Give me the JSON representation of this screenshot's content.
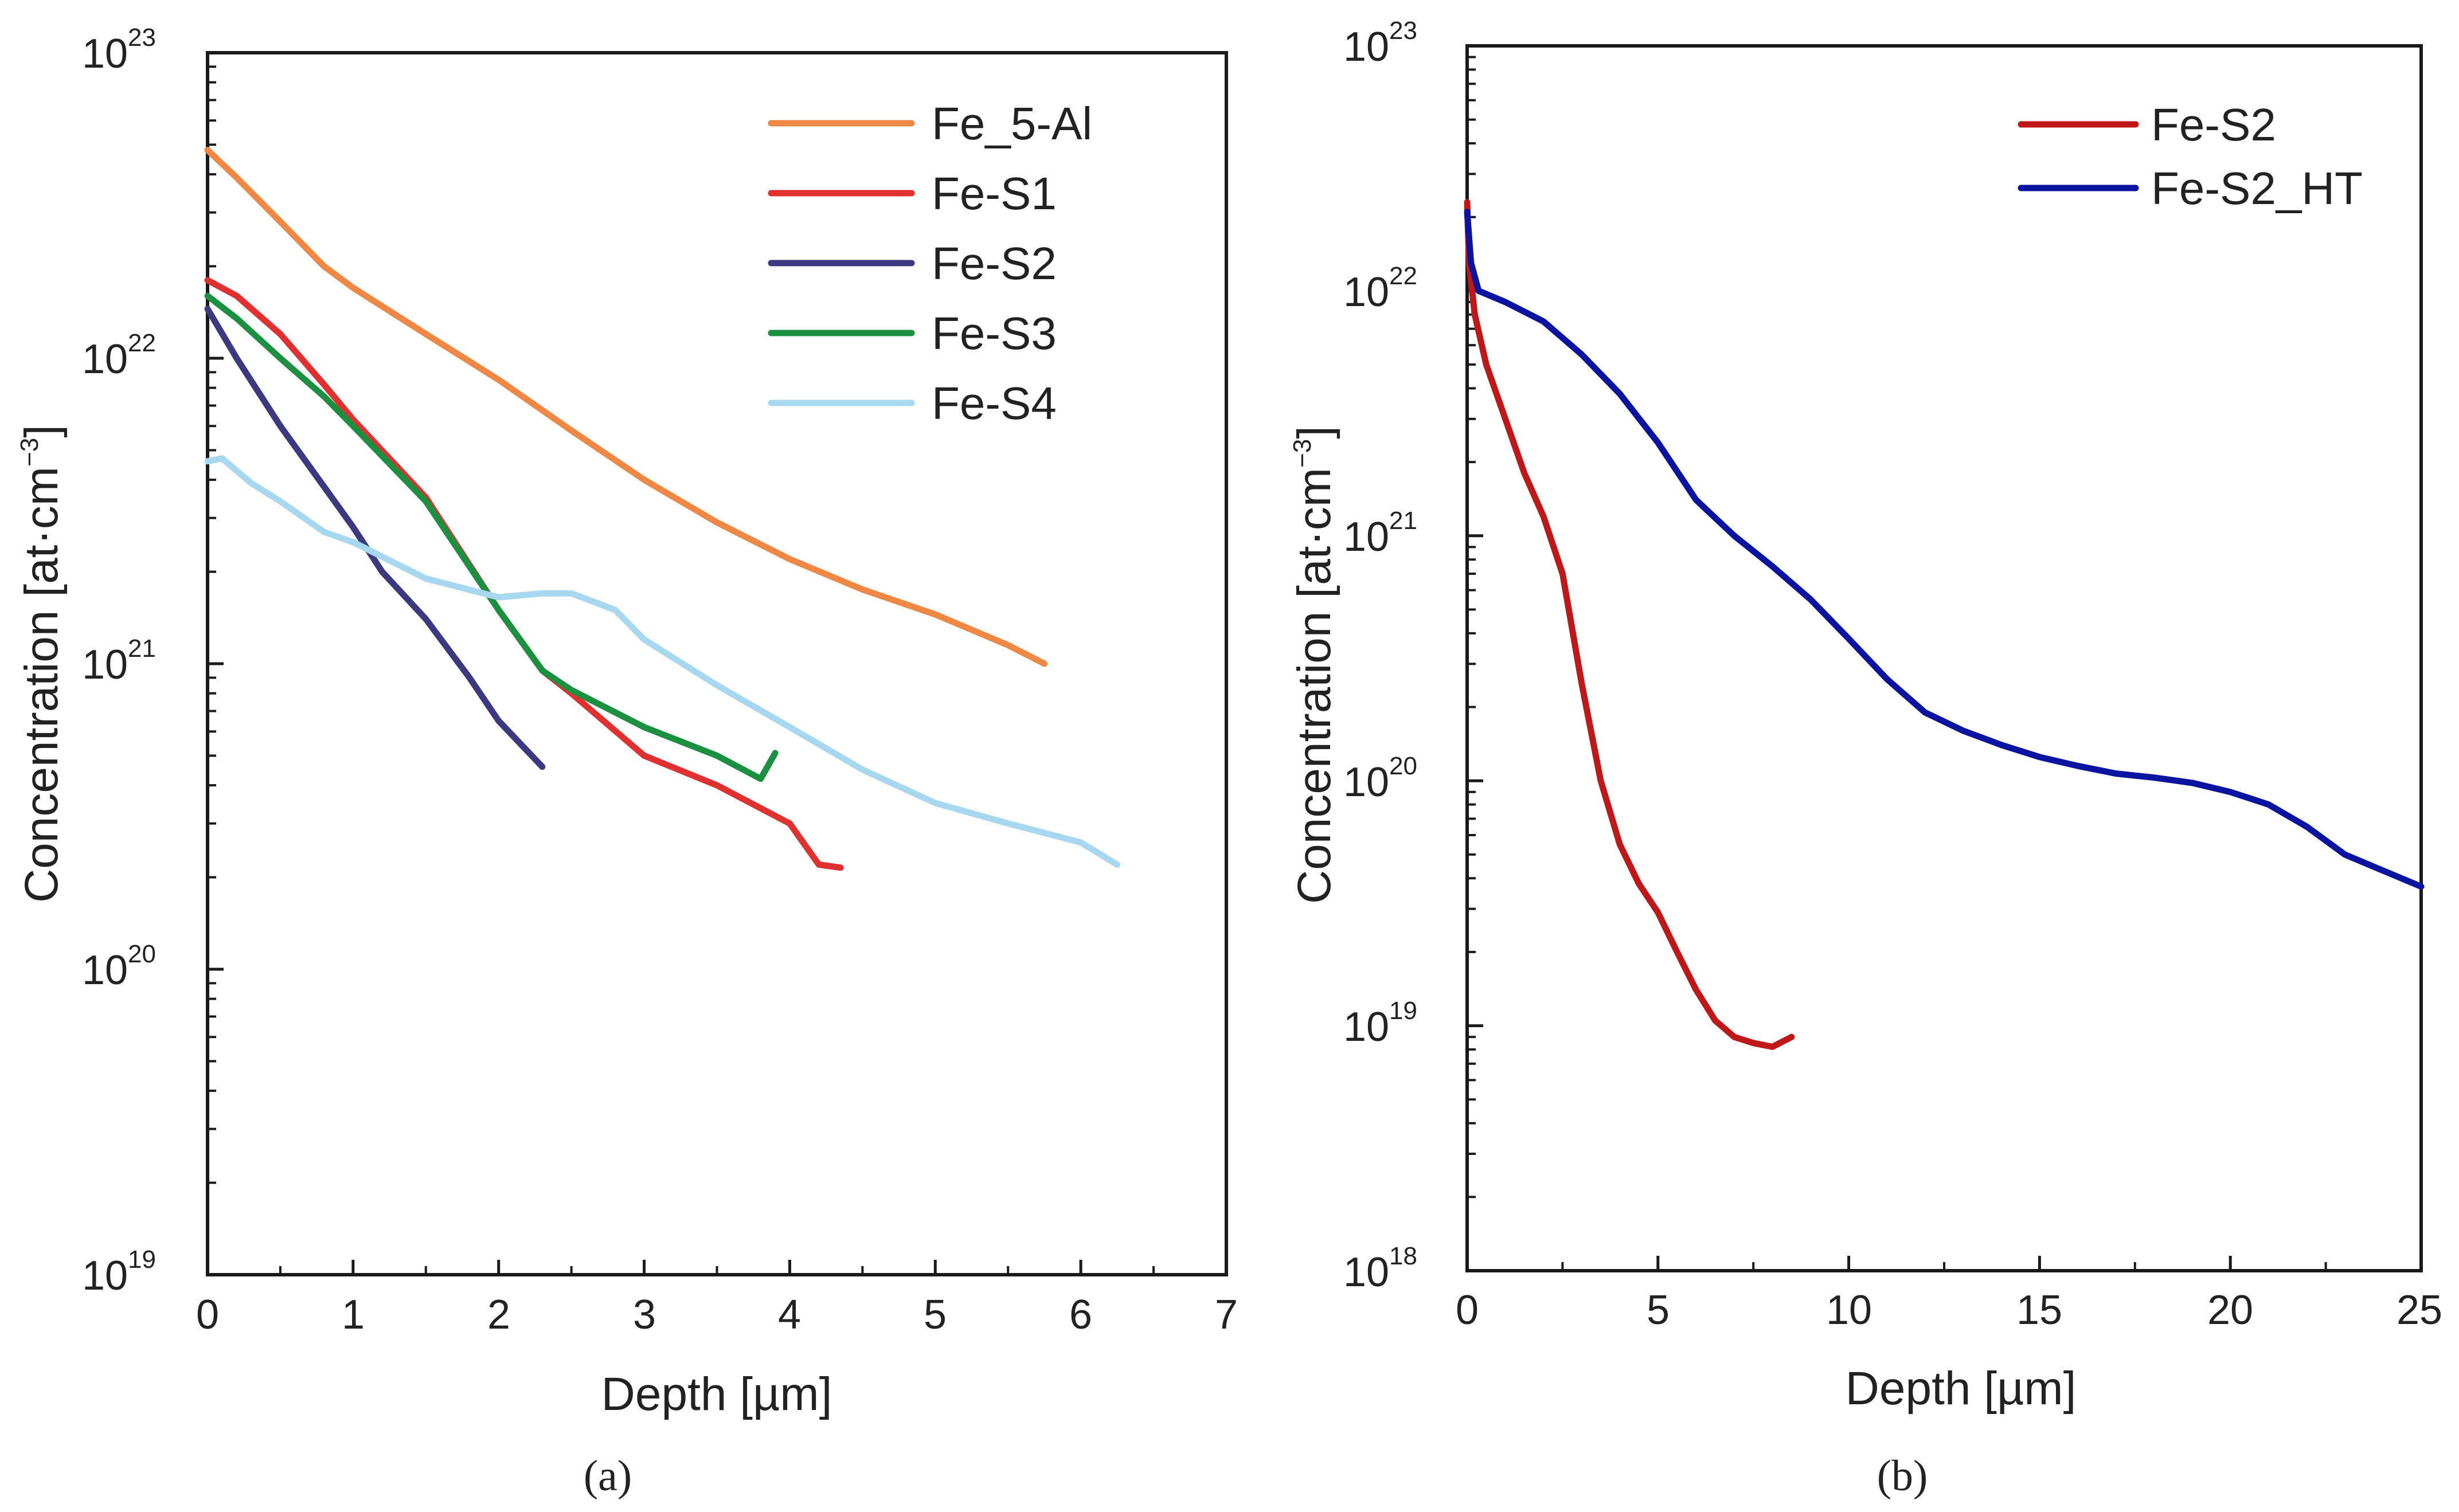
{
  "chart_data": [
    {
      "panel": "a",
      "caption": "(a)",
      "type": "line",
      "xlabel": "Depth [µm]",
      "ylabel": "Concentration [at·cm",
      "ylabel_sup": "−3",
      "ylabel_end": "]",
      "xlim": [
        0,
        7
      ],
      "ylim": [
        1e+19,
        1e+23
      ],
      "yscale": "log",
      "x_ticks": [
        "0",
        "1",
        "2",
        "3",
        "4",
        "5",
        "6",
        "7"
      ],
      "y_tick_labels": [
        {
          "base": "10",
          "exp": "19"
        },
        {
          "base": "10",
          "exp": "20"
        },
        {
          "base": "10",
          "exp": "21"
        },
        {
          "base": "10",
          "exp": "22"
        },
        {
          "base": "10",
          "exp": "23"
        }
      ],
      "legend_position": "top-right",
      "series": [
        {
          "name": "Fe_5-Al",
          "color": "#EE8844",
          "x": [
            0,
            0.2,
            0.5,
            0.8,
            1.0,
            1.5,
            2.0,
            2.5,
            3.0,
            3.5,
            4.0,
            4.5,
            5.0,
            5.5,
            5.75
          ],
          "y": [
            4.8e+22,
            3.9e+22,
            2.8e+22,
            2e+22,
            1.7e+22,
            1.2e+22,
            8.5e+21,
            5.8e+21,
            4e+21,
            2.9e+21,
            2.2e+21,
            1.75e+21,
            1.45e+21,
            1.15e+21,
            1e+21
          ]
        },
        {
          "name": "Fe-S1",
          "color": "#E03030",
          "x": [
            0,
            0.2,
            0.5,
            0.8,
            1.0,
            1.5,
            2.0,
            2.3,
            2.5,
            3.0,
            3.5,
            4.0,
            4.2,
            4.35
          ],
          "y": [
            1.8e+22,
            1.6e+22,
            1.2e+22,
            8.2e+21,
            6.3e+21,
            3.5e+21,
            1.5e+21,
            9.5e+20,
            8e+20,
            5e+20,
            4e+20,
            3e+20,
            2.2e+20,
            2.15e+20
          ]
        },
        {
          "name": "Fe-S2",
          "color": "#3B3A80",
          "x": [
            0,
            0.2,
            0.5,
            0.8,
            1.0,
            1.2,
            1.5,
            1.8,
            2.0,
            2.3
          ],
          "y": [
            1.45e+22,
            1e+22,
            6e+21,
            3.8e+21,
            2.8e+21,
            2e+21,
            1.4e+21,
            9e+20,
            6.5e+20,
            4.6e+20
          ]
        },
        {
          "name": "Fe-S3",
          "color": "#1A9040",
          "x": [
            0,
            0.2,
            0.5,
            0.8,
            1.0,
            1.5,
            2.0,
            2.3,
            2.5,
            3.0,
            3.5,
            3.8,
            3.9
          ],
          "y": [
            1.6e+22,
            1.35e+22,
            1e+22,
            7.5e+21,
            6e+21,
            3.4e+21,
            1.5e+21,
            9.5e+20,
            8.2e+20,
            6.2e+20,
            5e+20,
            4.2e+20,
            5.1e+20
          ]
        },
        {
          "name": "Fe-S4",
          "color": "#A8D8F0",
          "x": [
            0,
            0.1,
            0.3,
            0.5,
            0.8,
            1.0,
            1.5,
            2.0,
            2.3,
            2.5,
            2.8,
            3.0,
            3.5,
            4.0,
            4.5,
            5.0,
            5.5,
            6.0,
            6.25
          ],
          "y": [
            4.6e+21,
            4.7e+21,
            3.9e+21,
            3.4e+21,
            2.7e+21,
            2.5e+21,
            1.9e+21,
            1.65e+21,
            1.7e+21,
            1.7e+21,
            1.5e+21,
            1.2e+21,
            8.5e+20,
            6.2e+20,
            4.5e+20,
            3.5e+20,
            3e+20,
            2.6e+20,
            2.2e+20
          ]
        }
      ]
    },
    {
      "panel": "b",
      "caption": "(b)",
      "type": "line",
      "xlabel": "Depth [µm]",
      "ylabel": "Concentration [at·cm",
      "ylabel_sup": "−3",
      "ylabel_end": "]",
      "xlim": [
        0,
        25
      ],
      "ylim": [
        1e+18,
        1e+23
      ],
      "yscale": "log",
      "x_ticks": [
        "0",
        "5",
        "10",
        "15",
        "20",
        "25"
      ],
      "y_tick_labels": [
        {
          "base": "10",
          "exp": "18"
        },
        {
          "base": "10",
          "exp": "19"
        },
        {
          "base": "10",
          "exp": "20"
        },
        {
          "base": "10",
          "exp": "21"
        },
        {
          "base": "10",
          "exp": "22"
        },
        {
          "base": "10",
          "exp": "23"
        }
      ],
      "legend_position": "top-right",
      "series": [
        {
          "name": "Fe-S2",
          "color": "#C01818",
          "x": [
            0,
            0.05,
            0.2,
            0.5,
            1.0,
            1.5,
            2.0,
            2.5,
            3.0,
            3.5,
            4.0,
            4.5,
            5.0,
            5.5,
            6.0,
            6.5,
            7.0,
            7.5,
            8.0,
            8.5
          ],
          "y": [
            2.3e+22,
            1.3e+22,
            8e+21,
            5e+21,
            3e+21,
            1.8e+21,
            1.2e+21,
            7e+20,
            2.5e+20,
            1e+20,
            5.5e+19,
            3.8e+19,
            2.9e+19,
            2e+19,
            1.4e+19,
            1.05e+19,
            9e+18,
            8.5e+18,
            8.2e+18,
            9e+18
          ]
        },
        {
          "name": "Fe-S2_HT",
          "color": "#0A14A0",
          "x": [
            0,
            0.1,
            0.3,
            1.0,
            2.0,
            3.0,
            4.0,
            5.0,
            6.0,
            7.0,
            8.0,
            9.0,
            10.0,
            11.0,
            12.0,
            13.0,
            14.0,
            15.0,
            16.0,
            17.0,
            18.0,
            19.0,
            20.0,
            21.0,
            22.0,
            23.0,
            24.0,
            25.0
          ],
          "y": [
            2.1e+22,
            1.3e+22,
            1e+22,
            9e+21,
            7.5e+21,
            5.5e+21,
            3.8e+21,
            2.4e+21,
            1.4e+21,
            1e+21,
            7.5e+20,
            5.5e+20,
            3.8e+20,
            2.6e+20,
            1.9e+20,
            1.6e+20,
            1.4e+20,
            1.25e+20,
            1.15e+20,
            1.07e+20,
            1.03e+20,
            9.8e+19,
            9e+19,
            8e+19,
            6.5e+19,
            5e+19,
            4.3e+19,
            3.7e+19
          ]
        }
      ]
    }
  ]
}
